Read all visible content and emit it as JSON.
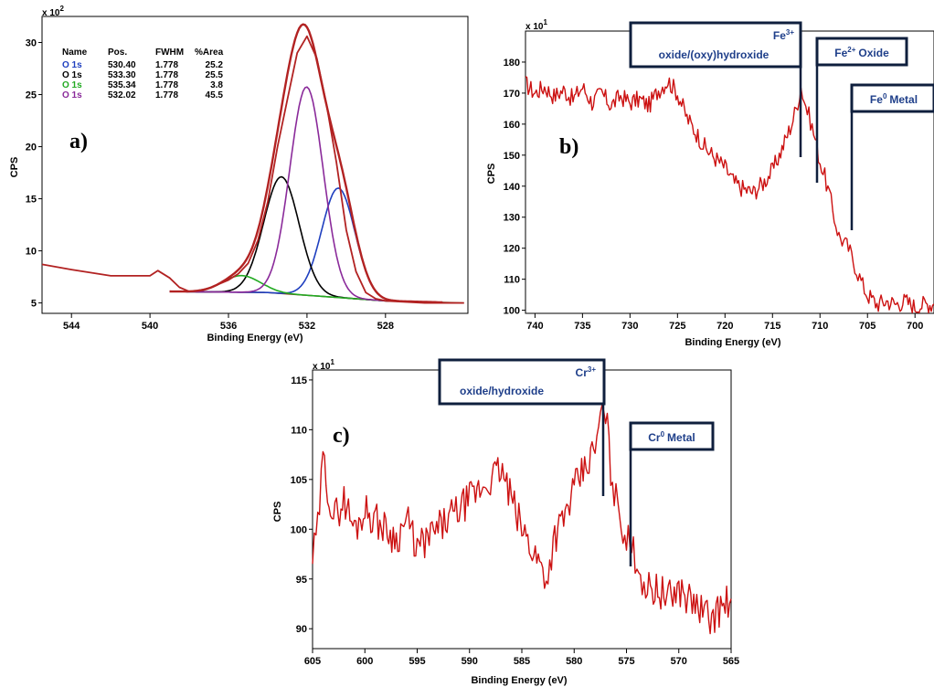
{
  "chart_data": [
    {
      "type": "line",
      "panel_label": "a)",
      "xlabel": "Binding Energy (eV)",
      "ylabel": "CPS",
      "y_multiplier": "x 10",
      "y_multiplier_exp": "2",
      "xlim": [
        545.5,
        523.8
      ],
      "ylim": [
        4,
        32.5
      ],
      "x_ticks": [
        "544",
        "540",
        "536",
        "532",
        "528"
      ],
      "y_ticks": [
        "5",
        "10",
        "15",
        "20",
        "25",
        "30"
      ],
      "legend_header": [
        "Name",
        "Pos.",
        "FWHM",
        "%Area"
      ],
      "legend_rows": [
        {
          "name": "O 1s",
          "pos": "530.40",
          "fwhm": "1.778",
          "area": "25.2",
          "color": "#1f3fbf"
        },
        {
          "name": "O 1s",
          "pos": "533.30",
          "fwhm": "1.778",
          "area": "25.5",
          "color": "#000000"
        },
        {
          "name": "O 1s",
          "pos": "535.34",
          "fwhm": "1.778",
          "area": "3.8",
          "color": "#22aa22"
        },
        {
          "name": "O 1s",
          "pos": "532.02",
          "fwhm": "1.778",
          "area": "45.5",
          "color": "#8a2a9a"
        }
      ],
      "peaks": [
        {
          "center": 530.4,
          "height": 10.5,
          "sigma": 0.85,
          "color": "#1f3fbf"
        },
        {
          "center": 533.3,
          "height": 11.2,
          "sigma": 0.9,
          "color": "#000000"
        },
        {
          "center": 535.34,
          "height": 1.6,
          "sigma": 0.95,
          "color": "#22aa22"
        },
        {
          "center": 532.02,
          "height": 20.0,
          "sigma": 0.85,
          "color": "#8a2a9a"
        }
      ],
      "envelope_color": "#b22222",
      "raw_data": {
        "color": "#b22222",
        "x": [
          545.5,
          544,
          542,
          540,
          539.6,
          539,
          538.5,
          538,
          537.5,
          537,
          536.5,
          536,
          535.5,
          535,
          534.5,
          534,
          533.5,
          533,
          532.5,
          532,
          531.5,
          531,
          530.5,
          530,
          529.5,
          529,
          528.5,
          528,
          527,
          526,
          525,
          524
        ],
        "y": [
          8.7,
          8.2,
          7.6,
          7.6,
          8.1,
          7.4,
          6.5,
          6.1,
          6.2,
          6.4,
          6.8,
          7.2,
          7.8,
          8.8,
          11.0,
          14.7,
          20.0,
          24.5,
          29.0,
          30.6,
          28.5,
          24.0,
          18.5,
          12.0,
          8.0,
          6.0,
          5.4,
          5.2,
          5.1,
          5.0,
          5.0,
          5.0
        ]
      },
      "baseline": {
        "x": [
          539,
          534,
          531,
          528,
          524
        ],
        "y": [
          6.1,
          6.0,
          5.6,
          5.2,
          5.0
        ],
        "color": "#7a3a1a"
      }
    },
    {
      "type": "line",
      "panel_label": "b)",
      "xlabel": "Binding Energy (eV)",
      "ylabel": "CPS",
      "y_multiplier": "x 10",
      "y_multiplier_exp": "1",
      "xlim": [
        741,
        698
      ],
      "ylim": [
        99,
        190
      ],
      "x_ticks": [
        "740",
        "735",
        "730",
        "725",
        "720",
        "715",
        "710",
        "705",
        "700"
      ],
      "y_ticks": [
        "100",
        "110",
        "120",
        "130",
        "140",
        "150",
        "160",
        "170",
        "180"
      ],
      "series": [
        {
          "color": "#cc1111",
          "x": [
            741,
            740,
            739,
            738,
            737,
            736,
            735,
            734,
            733,
            732,
            731,
            730,
            729,
            728,
            727,
            726,
            725,
            724,
            723,
            722,
            721,
            720,
            719,
            718,
            717,
            716,
            715,
            714,
            713,
            712.5,
            712,
            711.5,
            711,
            710.5,
            710,
            709.5,
            709,
            708.5,
            708,
            707.5,
            707,
            706.5,
            706,
            705.5,
            705,
            704,
            703,
            702,
            701,
            700,
            699,
            698
          ],
          "y": [
            173,
            170,
            172,
            169,
            171,
            168,
            172,
            167,
            170,
            166,
            169,
            167,
            168,
            166,
            171,
            174,
            170,
            162,
            157,
            152,
            149,
            146,
            141,
            139,
            138,
            141,
            145,
            152,
            160,
            165,
            172,
            166,
            161,
            155,
            148,
            143,
            137,
            130,
            124,
            122,
            120,
            116,
            112,
            108,
            105,
            102,
            103,
            102,
            103,
            101,
            102,
            102
          ]
        }
      ],
      "annotations": [
        {
          "label": "oxide/(oxy)hydroxide",
          "label_sup_base": "Fe",
          "label_sup": "3+",
          "x": 712.3
        },
        {
          "label": "Oxide",
          "label_sup_base": "Fe",
          "label_sup": "2+",
          "x": 710.5
        },
        {
          "label": "Metal",
          "label_sup_base": "Fe",
          "label_sup": "0",
          "x": 706.8
        }
      ]
    },
    {
      "type": "line",
      "panel_label": "c)",
      "xlabel": "Binding Energy (eV)",
      "ylabel": "CPS",
      "y_multiplier": "x 10",
      "y_multiplier_exp": "1",
      "xlim": [
        605,
        565
      ],
      "ylim": [
        88,
        116
      ],
      "x_ticks": [
        "605",
        "600",
        "595",
        "590",
        "585",
        "580",
        "575",
        "570",
        "565"
      ],
      "y_ticks": [
        "90",
        "95",
        "100",
        "105",
        "110",
        "115"
      ],
      "series": [
        {
          "color": "#cc1111",
          "x": [
            605,
            604.5,
            604,
            603,
            602,
            601,
            600,
            599,
            598,
            597,
            596,
            595,
            594,
            593,
            592,
            591,
            590,
            589,
            588,
            587,
            586,
            585,
            584,
            583,
            582.5,
            582,
            581,
            580,
            579,
            578,
            577.5,
            577,
            576.5,
            576,
            575.5,
            575,
            574.5,
            574,
            573.5,
            573,
            572,
            571,
            570,
            569,
            568,
            567,
            566,
            565
          ],
          "y": [
            97,
            100,
            107,
            101,
            103,
            100,
            102,
            101,
            100,
            99,
            101,
            98,
            99,
            100,
            101,
            102,
            103,
            104,
            105,
            106,
            103,
            100,
            98,
            96,
            95,
            99,
            101,
            104,
            106,
            108,
            111,
            112,
            106,
            103,
            101,
            99,
            98,
            97,
            95,
            94,
            94,
            93,
            94,
            93,
            92,
            91,
            92,
            93
          ]
        }
      ],
      "annotations": [
        {
          "label": "oxide/hydroxide",
          "label_sup_base": "Cr",
          "label_sup": "3+",
          "x": 577.2
        },
        {
          "label": "Metal",
          "label_sup_base": "Cr",
          "label_sup": "0",
          "x": 574.4
        }
      ]
    }
  ]
}
